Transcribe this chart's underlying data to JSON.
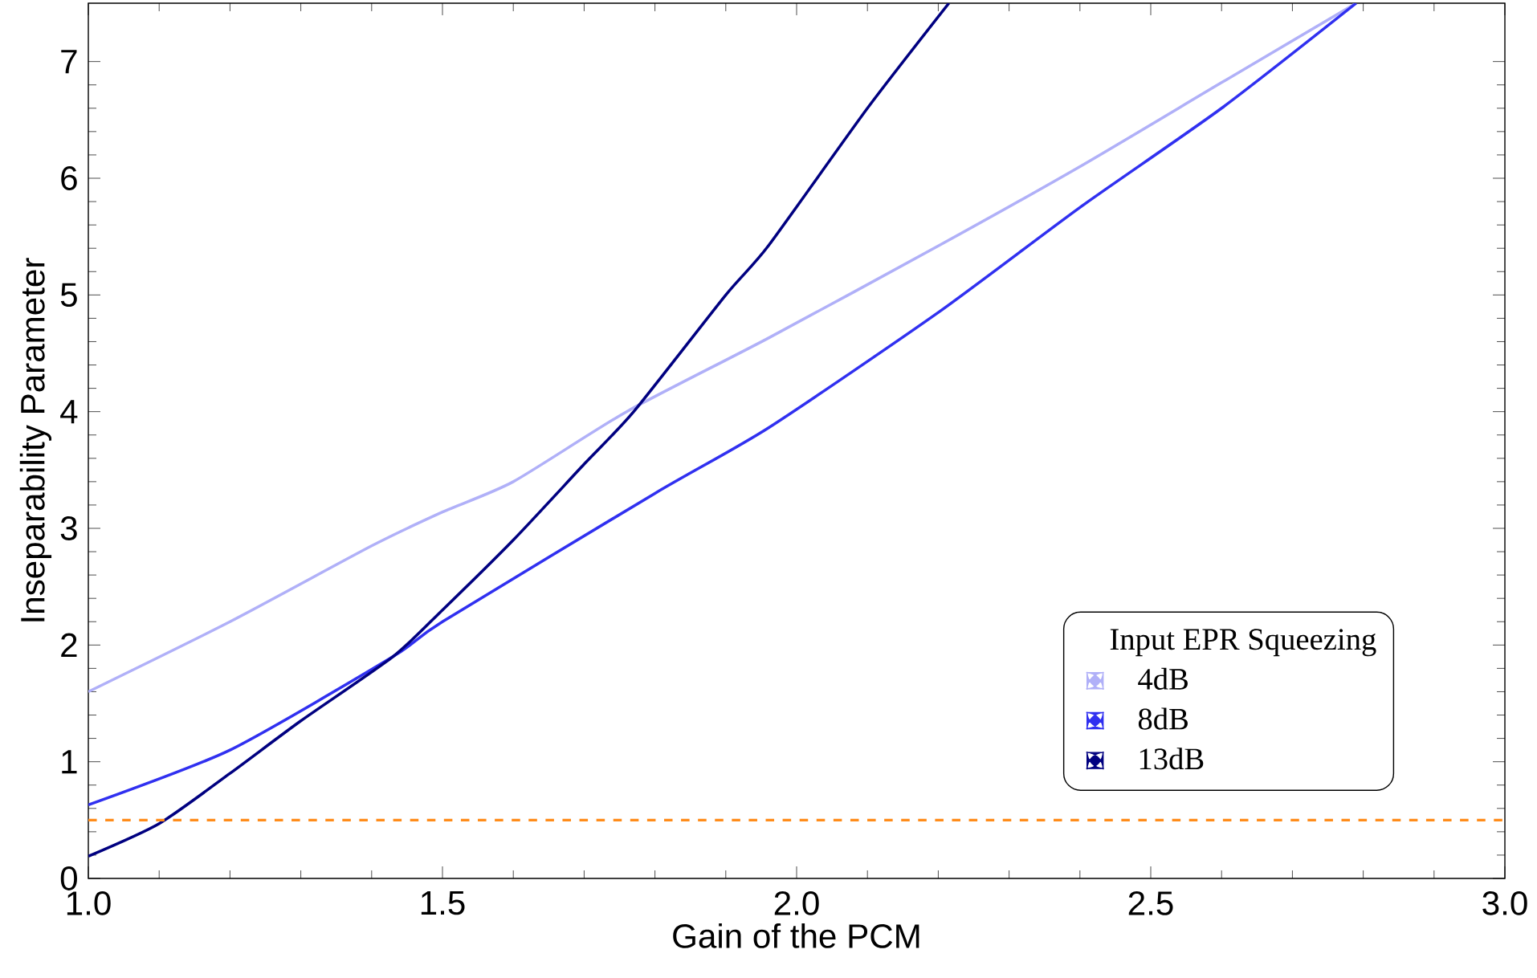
{
  "chart_data": {
    "type": "line",
    "xlabel": "Gain of the PCM",
    "ylabel": "Inseparability Parameter",
    "legend_title": "Input EPR Squeezing",
    "legend": "bottom right",
    "grid": false,
    "marker": "none",
    "line_style": "solid",
    "xlim": [
      1,
      3
    ],
    "ylim": [
      0,
      7.5
    ],
    "xticks": [
      {
        "value": 1,
        "label": "1.0"
      },
      {
        "value": 1.5,
        "label": "1.5"
      },
      {
        "value": 2,
        "label": "2.0"
      },
      {
        "value": 2.5,
        "label": "2.5"
      },
      {
        "value": 3,
        "label": "3.0"
      }
    ],
    "yticks": [
      0,
      1,
      2,
      3,
      4,
      5,
      6,
      7
    ],
    "series": [
      {
        "name": "4dB",
        "color": "#b0b0f8",
        "x": [
          1.0,
          1.2,
          1.4,
          1.5,
          1.6,
          1.76,
          1.96,
          2.2,
          2.4,
          2.6,
          2.79
        ],
        "values": [
          1.6,
          2.2,
          2.85,
          3.14,
          3.4,
          4.0,
          4.63,
          5.42,
          6.1,
          6.82,
          7.5
        ]
      },
      {
        "name": "8dB",
        "color": "#3030f0",
        "x": [
          1.0,
          1.2,
          1.43,
          1.5,
          1.8,
          1.96,
          2.2,
          2.4,
          2.6,
          2.79
        ],
        "values": [
          0.63,
          1.1,
          1.9,
          2.2,
          3.3,
          3.86,
          4.85,
          5.75,
          6.6,
          7.5
        ]
      },
      {
        "name": "13dB",
        "color": "#000080",
        "x": [
          1.0,
          1.1,
          1.2,
          1.3,
          1.43,
          1.5,
          1.6,
          1.7,
          1.77,
          1.9,
          1.96,
          2.1,
          2.215
        ],
        "values": [
          0.19,
          0.47,
          0.9,
          1.35,
          1.9,
          2.3,
          2.9,
          3.55,
          4.0,
          5.0,
          5.42,
          6.6,
          7.5
        ]
      }
    ],
    "ref_lines": [
      {
        "axis": "y",
        "value": 0.5,
        "color": "#ff8c1a",
        "line_style": "dashed"
      }
    ]
  }
}
